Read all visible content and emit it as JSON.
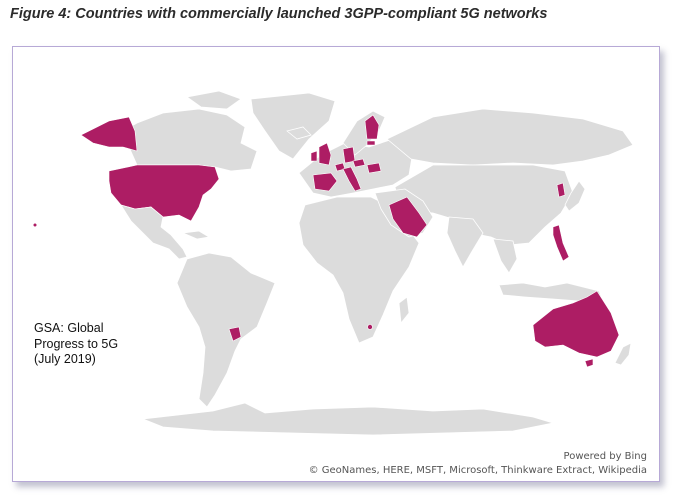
{
  "figure": {
    "title": "Figure 4: Countries with commercially launched 3GPP-compliant 5G networks"
  },
  "map": {
    "legend_colors": {
      "launched": "#ad1d64",
      "other": "#dcdcdc"
    },
    "highlighted_countries": [
      "United States",
      "Alaska (United States)",
      "United Kingdom",
      "Ireland",
      "Spain",
      "Switzerland",
      "Germany",
      "Italy",
      "Austria",
      "Romania",
      "Finland",
      "Estonia",
      "Saudi Arabia",
      "South Korea",
      "Philippines",
      "Australia",
      "Uruguay",
      "Lesotho",
      "Hawaii (United States)"
    ],
    "note_lines": [
      "GSA: Global",
      "Progress to 5G",
      "(July 2019)"
    ],
    "powered_by": "Powered by Bing",
    "credits": "© GeoNames, HERE, MSFT, Microsoft, Thinkware Extract, Wikipedia"
  }
}
